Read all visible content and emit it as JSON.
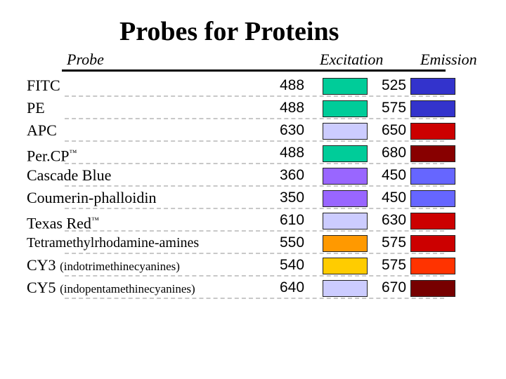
{
  "title": "Probes for Proteins",
  "headers": {
    "probe": "Probe",
    "excitation": "Excitation",
    "emission": "Emission"
  },
  "trademark": "™",
  "rows": [
    {
      "probe": "FITC",
      "sub": "",
      "tm": false,
      "excitation": "488",
      "excitation_color": "#00cc99",
      "emission": "525",
      "emission_color": "#3333cc"
    },
    {
      "probe": "PE",
      "sub": "",
      "tm": false,
      "excitation": "488",
      "excitation_color": "#00cc99",
      "emission": "575",
      "emission_color": "#3333cc"
    },
    {
      "probe": "APC",
      "sub": "",
      "tm": false,
      "excitation": "630",
      "excitation_color": "#ccccff",
      "emission": "650",
      "emission_color": "#cc0000"
    },
    {
      "probe": "Per.CP",
      "sub": "",
      "tm": true,
      "excitation": "488",
      "excitation_color": "#00cc99",
      "emission": "680",
      "emission_color": "#880000"
    },
    {
      "probe": "Cascade Blue",
      "sub": "",
      "tm": false,
      "excitation": "360",
      "excitation_color": "#9966ff",
      "emission": "450",
      "emission_color": "#6666ff"
    },
    {
      "probe": "Coumerin-phalloidin",
      "sub": "",
      "tm": false,
      "excitation": "350",
      "excitation_color": "#9966ff",
      "emission": "450",
      "emission_color": "#6666ff"
    },
    {
      "probe": "Texas Red",
      "sub": "",
      "tm": true,
      "excitation": "610",
      "excitation_color": "#ccccff",
      "emission": "630",
      "emission_color": "#cc0000"
    },
    {
      "probe": "Tetramethylrhodamine-amines",
      "sub": "",
      "tm": false,
      "excitation": "550",
      "excitation_color": "#ff9900",
      "emission": "575",
      "emission_color": "#cc0000"
    },
    {
      "probe": "CY3",
      "sub": "(indotrimethinecyanines)",
      "tm": false,
      "excitation": "540",
      "excitation_color": "#ffcc00",
      "emission": "575",
      "emission_color": "#ff3300"
    },
    {
      "probe": "CY5",
      "sub": "(indopentamethinecyanines)",
      "tm": false,
      "excitation": "640",
      "excitation_color": "#ccccff",
      "emission": "670",
      "emission_color": "#770000"
    }
  ]
}
